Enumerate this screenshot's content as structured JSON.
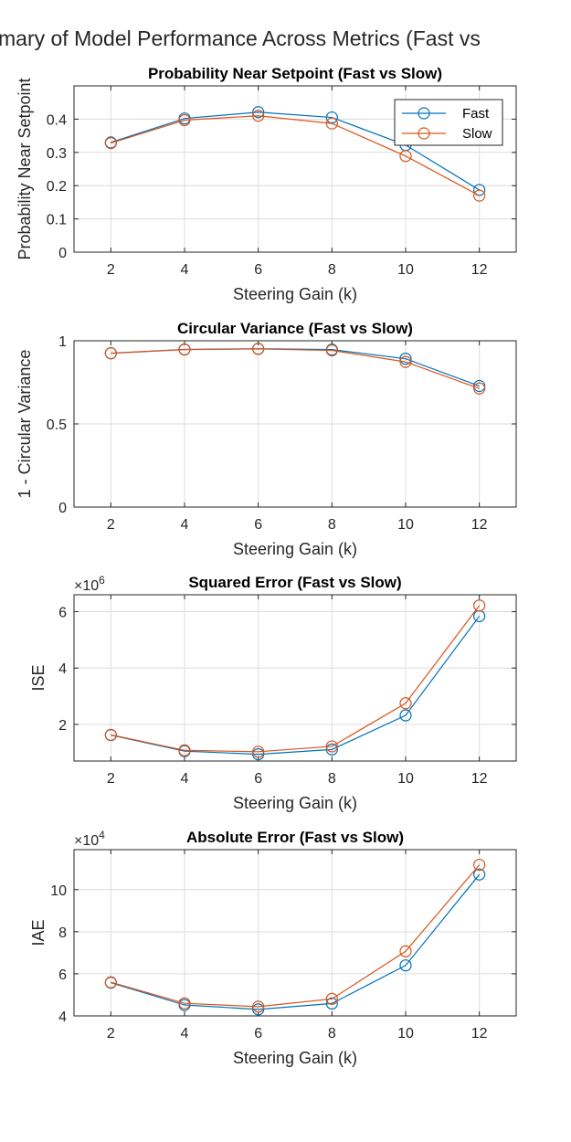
{
  "figure": {
    "suptitle": "mary of Model Performance Across Metrics (Fast vs",
    "colors": {
      "fast": "#0072BD",
      "slow": "#D95319"
    }
  },
  "chart_data": [
    {
      "type": "line",
      "title": "Probability Near Setpoint (Fast vs Slow)",
      "xlabel": "Steering Gain (k)",
      "ylabel": "Probability Near Setpoint",
      "x": [
        2,
        4,
        6,
        8,
        10,
        12
      ],
      "xlim": [
        1,
        13
      ],
      "ylim": [
        0,
        0.5
      ],
      "xticks": [
        "2",
        "4",
        "6",
        "8",
        "10",
        "12"
      ],
      "yticks": [
        0,
        0.1,
        0.2,
        0.3,
        0.4
      ],
      "ytick_labels": [
        "0",
        "0.1",
        "0.2",
        "0.3",
        "0.4"
      ],
      "grid": true,
      "legend": "top-right",
      "series": [
        {
          "name": "Fast",
          "values": [
            0.33,
            0.402,
            0.421,
            0.405,
            0.322,
            0.187
          ]
        },
        {
          "name": "Slow",
          "values": [
            0.328,
            0.397,
            0.41,
            0.387,
            0.289,
            0.17
          ]
        }
      ]
    },
    {
      "type": "line",
      "title": "Circular Variance (Fast vs Slow)",
      "xlabel": "Steering Gain (k)",
      "ylabel": "1 - Circular Variance",
      "x": [
        2,
        4,
        6,
        8,
        10,
        12
      ],
      "xlim": [
        1,
        13
      ],
      "ylim": [
        0,
        1
      ],
      "xticks": [
        "2",
        "4",
        "6",
        "8",
        "10",
        "12"
      ],
      "yticks": [
        0,
        0.5,
        1
      ],
      "ytick_labels": [
        "0",
        "0.5",
        "1"
      ],
      "grid": true,
      "series": [
        {
          "name": "Fast",
          "values": [
            0.925,
            0.948,
            0.952,
            0.947,
            0.892,
            0.728
          ]
        },
        {
          "name": "Slow",
          "values": [
            0.925,
            0.947,
            0.951,
            0.942,
            0.873,
            0.713
          ]
        }
      ]
    },
    {
      "type": "line",
      "title": "Squared Error (Fast vs Slow)",
      "xlabel": "Steering Gain (k)",
      "ylabel": "ISE",
      "exponent": "6",
      "x": [
        2,
        4,
        6,
        8,
        10,
        12
      ],
      "xlim": [
        1,
        13
      ],
      "ylim": [
        0.7,
        6.6
      ],
      "xticks": [
        "2",
        "4",
        "6",
        "8",
        "10",
        "12"
      ],
      "yticks": [
        2,
        4,
        6
      ],
      "ytick_labels": [
        "2",
        "4",
        "6"
      ],
      "grid": true,
      "series": [
        {
          "name": "Fast",
          "values": [
            1.62,
            1.05,
            0.94,
            1.11,
            2.32,
            5.84
          ]
        },
        {
          "name": "Slow",
          "values": [
            1.63,
            1.08,
            1.03,
            1.22,
            2.75,
            6.22
          ]
        }
      ]
    },
    {
      "type": "line",
      "title": "Absolute Error (Fast vs Slow)",
      "xlabel": "Steering Gain (k)",
      "ylabel": "IAE",
      "exponent": "4",
      "x": [
        2,
        4,
        6,
        8,
        10,
        12
      ],
      "xlim": [
        1,
        13
      ],
      "ylim": [
        4,
        11.9
      ],
      "xticks": [
        "2",
        "4",
        "6",
        "8",
        "10",
        "12"
      ],
      "yticks": [
        4,
        6,
        8,
        10
      ],
      "ytick_labels": [
        "4",
        "6",
        "8",
        "10"
      ],
      "grid": true,
      "series": [
        {
          "name": "Fast",
          "values": [
            5.58,
            4.52,
            4.31,
            4.59,
            6.4,
            10.72
          ]
        },
        {
          "name": "Slow",
          "values": [
            5.6,
            4.6,
            4.44,
            4.81,
            7.07,
            11.18
          ]
        }
      ]
    }
  ]
}
